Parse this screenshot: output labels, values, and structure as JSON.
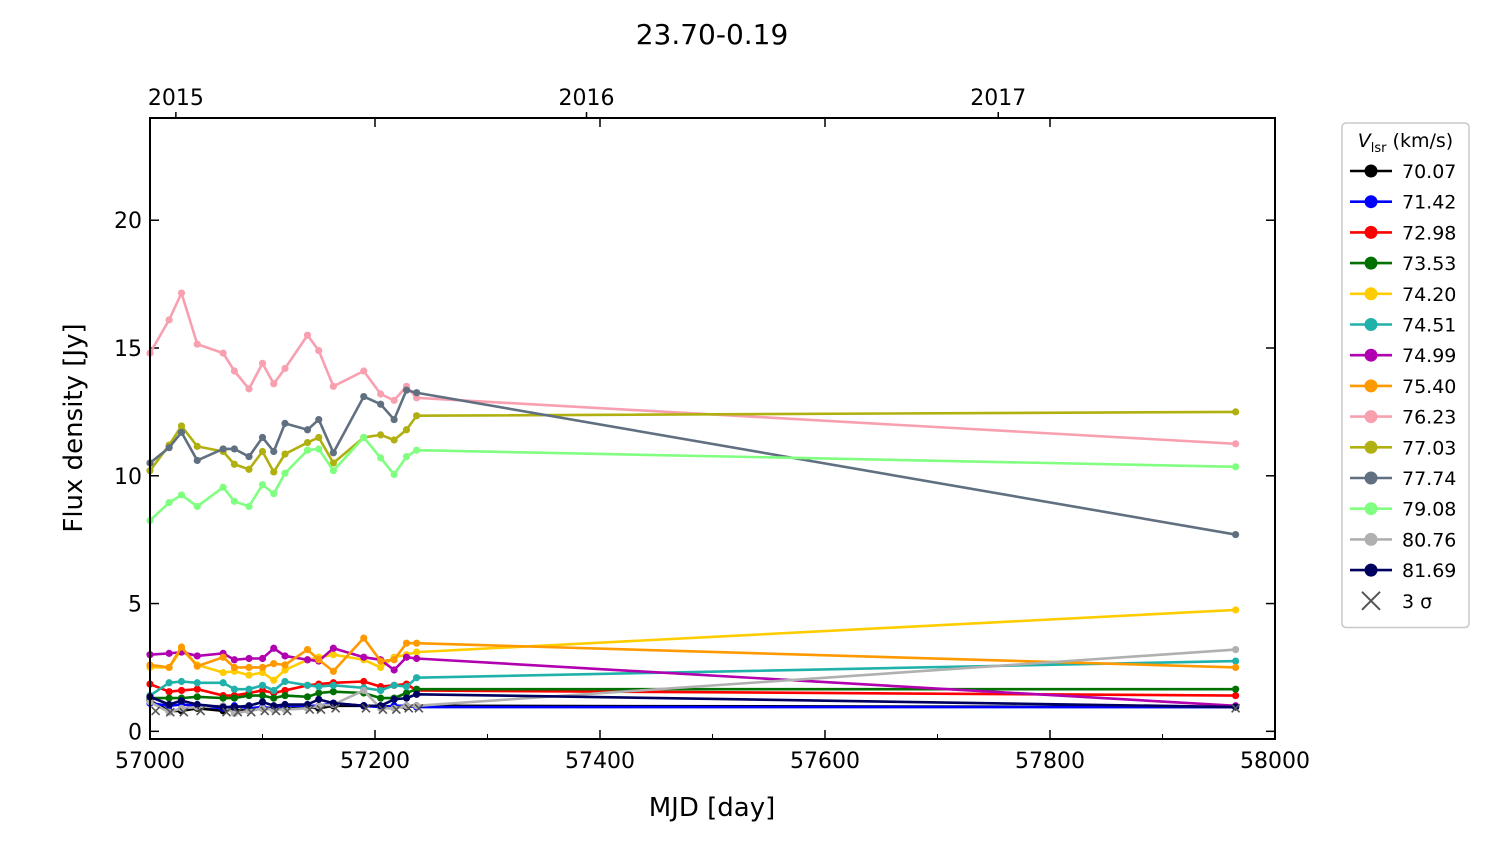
{
  "chart_data": {
    "type": "line",
    "title": "23.70-0.19",
    "xlabel": "MJD [day]",
    "ylabel": "Flux density [Jy]",
    "xlim": [
      57000,
      58000
    ],
    "ylim": [
      -0.3,
      24
    ],
    "x_ticks": [
      57000,
      57200,
      57400,
      57600,
      57800,
      58000
    ],
    "y_ticks": [
      0,
      5,
      10,
      15,
      20
    ],
    "top_axis": {
      "ticks": [
        {
          "label": "2015",
          "mjd": 57023
        },
        {
          "label": "2016",
          "mjd": 57388
        },
        {
          "label": "2017",
          "mjd": 57754
        }
      ]
    },
    "legend": {
      "title_symbol": "V",
      "title_subscript": "lsr",
      "title_unit": " (km/s)",
      "placement": "outside-right",
      "sigma_label": "3 σ"
    },
    "x": [
      57000,
      57017,
      57028,
      57042,
      57065,
      57075,
      57088,
      57100,
      57110,
      57120,
      57140,
      57150,
      57163,
      57190,
      57205,
      57217,
      57228,
      57237,
      57965
    ],
    "series": [
      {
        "name": "70.07",
        "color": "#000000",
        "values": [
          1.2,
          0.8,
          0.8,
          0.9,
          0.8,
          0.85,
          0.8,
          0.9,
          0.85,
          0.9,
          0.95,
          0.9,
          1.0,
          1.0,
          1.0,
          0.95,
          0.95,
          1.0,
          0.95
        ]
      },
      {
        "name": "71.42",
        "color": "#0000ff",
        "values": [
          1.1,
          1.0,
          1.05,
          1.0,
          0.9,
          1.0,
          0.9,
          0.95,
          0.9,
          1.0,
          1.0,
          1.0,
          1.1,
          1.0,
          0.95,
          1.0,
          1.0,
          0.95,
          0.95
        ]
      },
      {
        "name": "72.98",
        "color": "#ff0000",
        "values": [
          1.85,
          1.55,
          1.6,
          1.65,
          1.4,
          1.4,
          1.5,
          1.6,
          1.5,
          1.6,
          1.8,
          1.85,
          1.9,
          1.95,
          1.75,
          1.8,
          1.85,
          1.6,
          1.4
        ]
      },
      {
        "name": "73.53",
        "color": "#007000",
        "values": [
          1.3,
          1.3,
          1.3,
          1.35,
          1.3,
          1.3,
          1.4,
          1.4,
          1.3,
          1.4,
          1.35,
          1.5,
          1.55,
          1.5,
          1.3,
          1.3,
          1.5,
          1.65,
          1.65
        ]
      },
      {
        "name": "74.20",
        "color": "#ffcc00",
        "values": [
          2.5,
          2.5,
          3.2,
          2.6,
          2.3,
          2.35,
          2.2,
          2.3,
          2.0,
          2.4,
          2.8,
          2.9,
          3.0,
          2.8,
          2.5,
          2.9,
          3.0,
          3.1,
          4.75
        ]
      },
      {
        "name": "74.51",
        "color": "#20b2aa",
        "values": [
          1.4,
          1.9,
          1.95,
          1.9,
          1.9,
          1.65,
          1.65,
          1.8,
          1.6,
          1.95,
          1.8,
          1.75,
          1.8,
          1.7,
          1.6,
          1.8,
          1.75,
          2.1,
          2.75
        ]
      },
      {
        "name": "74.99",
        "color": "#b000b0",
        "values": [
          3.0,
          3.05,
          3.1,
          2.95,
          3.05,
          2.8,
          2.85,
          2.85,
          3.25,
          2.95,
          2.8,
          2.75,
          3.25,
          2.9,
          2.8,
          2.4,
          2.9,
          2.85,
          1.0
        ]
      },
      {
        "name": "75.40",
        "color": "#ff9900",
        "values": [
          2.6,
          2.5,
          3.3,
          2.55,
          2.9,
          2.5,
          2.5,
          2.5,
          2.65,
          2.6,
          3.2,
          2.8,
          2.35,
          3.65,
          2.75,
          2.8,
          3.45,
          3.45,
          2.5
        ]
      },
      {
        "name": "76.23",
        "color": "#f8a0b0",
        "values": [
          14.8,
          16.1,
          17.15,
          15.15,
          14.8,
          14.1,
          13.4,
          14.4,
          13.6,
          14.2,
          15.5,
          14.9,
          13.5,
          14.1,
          13.2,
          12.95,
          13.5,
          13.05,
          11.25
        ]
      },
      {
        "name": "77.03",
        "color": "#b0b010",
        "values": [
          10.2,
          11.2,
          11.95,
          11.15,
          10.95,
          10.45,
          10.25,
          10.95,
          10.15,
          10.85,
          11.3,
          11.5,
          10.5,
          11.5,
          11.6,
          11.4,
          11.8,
          12.35,
          12.5
        ]
      },
      {
        "name": "77.74",
        "color": "#607080",
        "values": [
          10.5,
          11.1,
          11.7,
          10.6,
          11.05,
          11.05,
          10.75,
          11.5,
          10.95,
          12.05,
          11.8,
          12.2,
          10.9,
          13.1,
          12.8,
          12.2,
          13.35,
          13.25,
          7.7
        ]
      },
      {
        "name": "79.08",
        "color": "#80ff80",
        "values": [
          8.25,
          8.95,
          9.25,
          8.8,
          9.55,
          9.0,
          8.8,
          9.65,
          9.3,
          10.1,
          11.0,
          11.05,
          10.2,
          11.5,
          10.7,
          10.05,
          10.75,
          11.0,
          10.35
        ]
      },
      {
        "name": "80.76",
        "color": "#b0b0b0",
        "values": [
          1.15,
          0.75,
          0.9,
          0.95,
          1.0,
          0.7,
          0.8,
          0.9,
          0.85,
          0.85,
          0.9,
          1.0,
          1.05,
          1.6,
          0.9,
          0.9,
          1.0,
          1.0,
          3.2
        ]
      },
      {
        "name": "81.69",
        "color": "#000060",
        "values": [
          1.35,
          1.05,
          1.2,
          1.05,
          0.95,
          0.95,
          1.0,
          1.15,
          1.0,
          1.05,
          1.05,
          1.25,
          1.1,
          1.0,
          1.0,
          1.25,
          1.3,
          1.45,
          0.95
        ]
      }
    ],
    "sigma_x": [
      57005,
      57018,
      57030,
      57045,
      57068,
      57078,
      57090,
      57102,
      57112,
      57122,
      57142,
      57152,
      57165,
      57192,
      57207,
      57219,
      57230,
      57239,
      57965
    ],
    "sigma_values": [
      0.8,
      0.75,
      0.75,
      0.8,
      0.75,
      0.75,
      0.75,
      0.8,
      0.8,
      0.8,
      0.85,
      0.85,
      0.9,
      0.9,
      0.85,
      0.85,
      0.9,
      0.9,
      0.9
    ]
  }
}
